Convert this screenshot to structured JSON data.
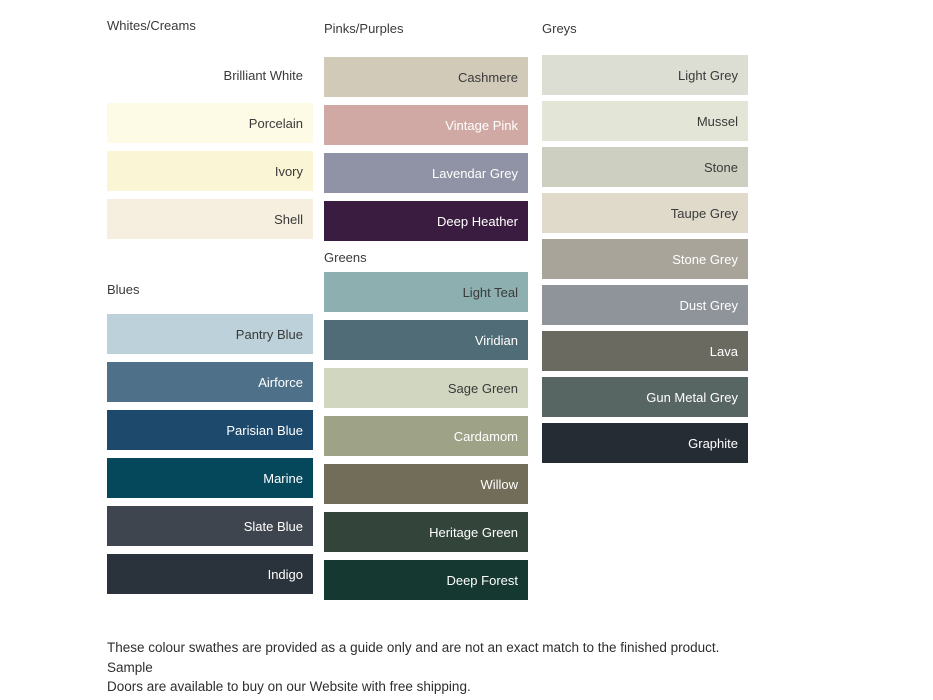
{
  "sections": {
    "whites": {
      "header": "Whites/Creams",
      "swatches": [
        {
          "name": "Brilliant White",
          "color": "#FFFFFF",
          "text_color": "#3A3A3A"
        },
        {
          "name": "Porcelain",
          "color": "#FDFAE5",
          "text_color": "#3A3A3A"
        },
        {
          "name": "Ivory",
          "color": "#FAF5D5",
          "text_color": "#3A3A3A"
        },
        {
          "name": "Shell",
          "color": "#F6EEDE",
          "text_color": "#3A3A3A"
        }
      ]
    },
    "blues": {
      "header": "Blues",
      "swatches": [
        {
          "name": "Pantry Blue",
          "color": "#BCD1D9",
          "text_color": "#3A3A3A"
        },
        {
          "name": "Airforce",
          "color": "#4F7089",
          "text_color": "#FFFFFF"
        },
        {
          "name": "Parisian Blue",
          "color": "#1D4A6C",
          "text_color": "#FFFFFF"
        },
        {
          "name": "Marine",
          "color": "#05485C",
          "text_color": "#FFFFFF"
        },
        {
          "name": "Slate Blue",
          "color": "#3F454E",
          "text_color": "#FFFFFF"
        },
        {
          "name": "Indigo",
          "color": "#2A323C",
          "text_color": "#FFFFFF"
        }
      ]
    },
    "pinks": {
      "header": "Pinks/Purples",
      "swatches": [
        {
          "name": "Cashmere",
          "color": "#D1CAB9",
          "text_color": "#3A3A3A"
        },
        {
          "name": "Vintage Pink",
          "color": "#D0A9A4",
          "text_color": "#FFFFFF"
        },
        {
          "name": "Lavendar Grey",
          "color": "#8F93A5",
          "text_color": "#FFFFFF"
        },
        {
          "name": "Deep Heather",
          "color": "#3A1C40",
          "text_color": "#FFFFFF"
        }
      ]
    },
    "greens": {
      "header": "Greens",
      "swatches": [
        {
          "name": "Light Teal",
          "color": "#8EAFAF",
          "text_color": "#3A3A3A"
        },
        {
          "name": "Viridian",
          "color": "#506C76",
          "text_color": "#FFFFFF"
        },
        {
          "name": "Sage Green",
          "color": "#D0D6C0",
          "text_color": "#3A3A3A"
        },
        {
          "name": "Cardamom",
          "color": "#9EA287",
          "text_color": "#FFFFFF"
        },
        {
          "name": "Willow",
          "color": "#716D58",
          "text_color": "#FFFFFF"
        },
        {
          "name": "Heritage Green",
          "color": "#33453B",
          "text_color": "#FFFFFF"
        },
        {
          "name": "Deep Forest",
          "color": "#153830",
          "text_color": "#FFFFFF"
        }
      ]
    },
    "greys": {
      "header": "Greys",
      "swatches": [
        {
          "name": "Light Grey",
          "color": "#DCDED3",
          "text_color": "#3A3A3A"
        },
        {
          "name": "Mussel",
          "color": "#E3E5D6",
          "text_color": "#3A3A3A"
        },
        {
          "name": "Stone",
          "color": "#CDD0C0",
          "text_color": "#3A3A3A"
        },
        {
          "name": "Taupe Grey",
          "color": "#DFDACA",
          "text_color": "#3A3A3A"
        },
        {
          "name": "Stone Grey",
          "color": "#A8A49A",
          "text_color": "#FFFFFF"
        },
        {
          "name": "Dust Grey",
          "color": "#8F939A",
          "text_color": "#FFFFFF"
        },
        {
          "name": "Lava",
          "color": "#6A6A61",
          "text_color": "#FFFFFF"
        },
        {
          "name": "Gun Metal Grey",
          "color": "#586663",
          "text_color": "#FFFFFF"
        },
        {
          "name": "Graphite",
          "color": "#262C33",
          "text_color": "#FFFFFF"
        }
      ]
    }
  },
  "footer": {
    "line1": "These colour swathes are provided as a guide only and are not an exact match to the finished product.  Sample",
    "line2": "Doors are available to buy on our Website with free shipping."
  }
}
